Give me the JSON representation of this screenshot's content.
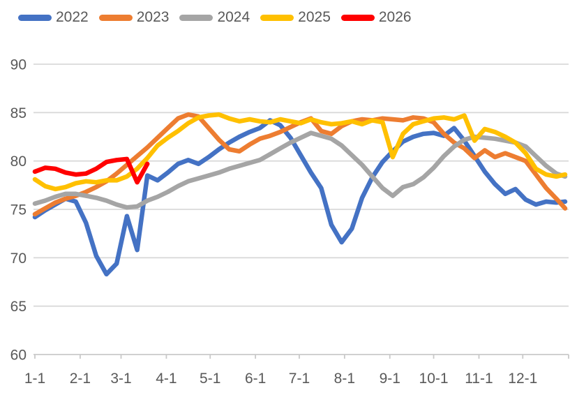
{
  "chart_data": {
    "type": "line",
    "title": "",
    "description": "Seasonal weekly line chart comparing five years (2022-2026), values roughly 68-85, plotted across month-day dates 1-1 through 12-31. 2026 series is partial, ending near 3-20.",
    "legend_position": "top",
    "grid": true,
    "colors": {
      "axis_text": "#595959",
      "gridline": "#D9D9D9",
      "axis_line": "#C9C9C9",
      "background": "#FFFFFF"
    },
    "y_axis": {
      "min": 60,
      "max": 90,
      "step": 5,
      "tick_labels": [
        "60",
        "65",
        "70",
        "75",
        "80",
        "85",
        "90"
      ]
    },
    "x_axis": {
      "tick_labels": [
        "1-1",
        "2-1",
        "3-1",
        "4-1",
        "5-1",
        "6-1",
        "7-1",
        "8-1",
        "9-1",
        "10-1",
        "11-1",
        "12-1"
      ],
      "tick_days": [
        1,
        32,
        60,
        91,
        121,
        152,
        182,
        213,
        244,
        274,
        305,
        335
      ],
      "domain_days": [
        1,
        364
      ]
    },
    "series": [
      {
        "name": "2022",
        "color": "#4472C4",
        "days": [
          1,
          8,
          15,
          22,
          29,
          36,
          43,
          50,
          57,
          64,
          71,
          78,
          85,
          92,
          99,
          106,
          113,
          120,
          127,
          134,
          141,
          148,
          155,
          162,
          169,
          176,
          183,
          190,
          197,
          204,
          211,
          218,
          225,
          232,
          239,
          246,
          253,
          260,
          267,
          274,
          281,
          288,
          295,
          302,
          309,
          316,
          323,
          330,
          337,
          344,
          351,
          358,
          364
        ],
        "values": [
          74.2,
          74.9,
          75.5,
          76.1,
          75.8,
          73.6,
          70.2,
          68.3,
          69.4,
          74.3,
          70.8,
          78.5,
          78.0,
          78.8,
          79.7,
          80.1,
          79.7,
          80.4,
          81.2,
          81.9,
          82.5,
          83.0,
          83.4,
          84.2,
          83.7,
          82.4,
          80.6,
          78.8,
          77.2,
          73.4,
          71.6,
          73.0,
          76.2,
          78.3,
          79.9,
          81.0,
          82.0,
          82.5,
          82.8,
          82.9,
          82.6,
          83.4,
          82.1,
          80.5,
          78.9,
          77.6,
          76.6,
          77.1,
          76.0,
          75.5,
          75.8,
          75.7,
          75.8
        ]
      },
      {
        "name": "2023",
        "color": "#ED7D31",
        "days": [
          1,
          8,
          15,
          22,
          29,
          36,
          43,
          50,
          57,
          64,
          71,
          78,
          85,
          92,
          99,
          106,
          113,
          120,
          127,
          134,
          141,
          148,
          155,
          162,
          169,
          176,
          183,
          190,
          197,
          204,
          211,
          218,
          225,
          232,
          239,
          246,
          253,
          260,
          267,
          274,
          281,
          288,
          295,
          302,
          309,
          316,
          323,
          330,
          337,
          344,
          351,
          358,
          364
        ],
        "values": [
          74.5,
          75.1,
          75.7,
          76.1,
          76.4,
          76.8,
          77.3,
          77.9,
          78.7,
          79.6,
          80.5,
          81.4,
          82.4,
          83.4,
          84.4,
          84.8,
          84.6,
          83.4,
          82.2,
          81.2,
          81.0,
          81.7,
          82.3,
          82.6,
          83.0,
          83.5,
          84.0,
          84.4,
          83.1,
          82.8,
          83.6,
          84.1,
          84.3,
          84.2,
          84.4,
          84.3,
          84.2,
          84.5,
          84.4,
          84.0,
          82.8,
          81.9,
          81.3,
          80.3,
          81.1,
          80.4,
          80.8,
          80.4,
          80.0,
          78.6,
          77.2,
          76.1,
          75.1
        ]
      },
      {
        "name": "2024",
        "color": "#A5A5A5",
        "days": [
          1,
          8,
          15,
          22,
          29,
          36,
          43,
          50,
          57,
          64,
          71,
          78,
          85,
          92,
          99,
          106,
          113,
          120,
          127,
          134,
          141,
          148,
          155,
          162,
          169,
          176,
          183,
          190,
          197,
          204,
          211,
          218,
          225,
          232,
          239,
          246,
          253,
          260,
          267,
          274,
          281,
          288,
          295,
          302,
          309,
          316,
          323,
          330,
          337,
          344,
          351,
          358,
          364
        ],
        "values": [
          75.6,
          75.9,
          76.3,
          76.6,
          76.6,
          76.4,
          76.2,
          75.9,
          75.5,
          75.2,
          75.3,
          75.9,
          76.3,
          76.8,
          77.4,
          77.9,
          78.2,
          78.5,
          78.8,
          79.2,
          79.5,
          79.8,
          80.1,
          80.7,
          81.3,
          81.9,
          82.4,
          82.9,
          82.6,
          82.3,
          81.6,
          80.6,
          79.6,
          78.4,
          77.2,
          76.4,
          77.3,
          77.6,
          78.3,
          79.3,
          80.5,
          81.5,
          82.2,
          82.5,
          82.4,
          82.3,
          82.1,
          81.9,
          81.5,
          80.5,
          79.5,
          78.7,
          78.4
        ]
      },
      {
        "name": "2025",
        "color": "#FFC000",
        "days": [
          1,
          8,
          15,
          22,
          29,
          36,
          43,
          50,
          57,
          64,
          71,
          78,
          85,
          92,
          99,
          106,
          113,
          120,
          127,
          134,
          141,
          148,
          155,
          162,
          169,
          176,
          183,
          190,
          197,
          204,
          211,
          218,
          225,
          232,
          239,
          246,
          253,
          260,
          267,
          274,
          281,
          288,
          295,
          302,
          309,
          316,
          323,
          330,
          337,
          344,
          351,
          358,
          364
        ],
        "values": [
          78.1,
          77.4,
          77.1,
          77.3,
          77.7,
          77.9,
          77.8,
          78.0,
          78.0,
          78.4,
          79.2,
          80.3,
          81.6,
          82.4,
          83.1,
          83.9,
          84.5,
          84.7,
          84.8,
          84.4,
          84.1,
          84.3,
          84.1,
          84.0,
          84.3,
          84.1,
          83.9,
          84.3,
          84.0,
          83.8,
          83.9,
          84.1,
          83.8,
          84.2,
          84.0,
          80.4,
          82.8,
          83.8,
          84.1,
          84.4,
          84.5,
          84.3,
          84.7,
          82.1,
          83.3,
          83.0,
          82.5,
          81.9,
          80.8,
          79.2,
          78.6,
          78.4,
          78.6
        ]
      },
      {
        "name": "2026",
        "color": "#FF0000",
        "days": [
          1,
          8,
          15,
          22,
          29,
          36,
          43,
          50,
          57,
          64,
          71,
          78
        ],
        "values": [
          78.9,
          79.3,
          79.2,
          78.8,
          78.6,
          78.7,
          79.2,
          79.9,
          80.1,
          80.2,
          77.8,
          79.7
        ]
      }
    ]
  }
}
